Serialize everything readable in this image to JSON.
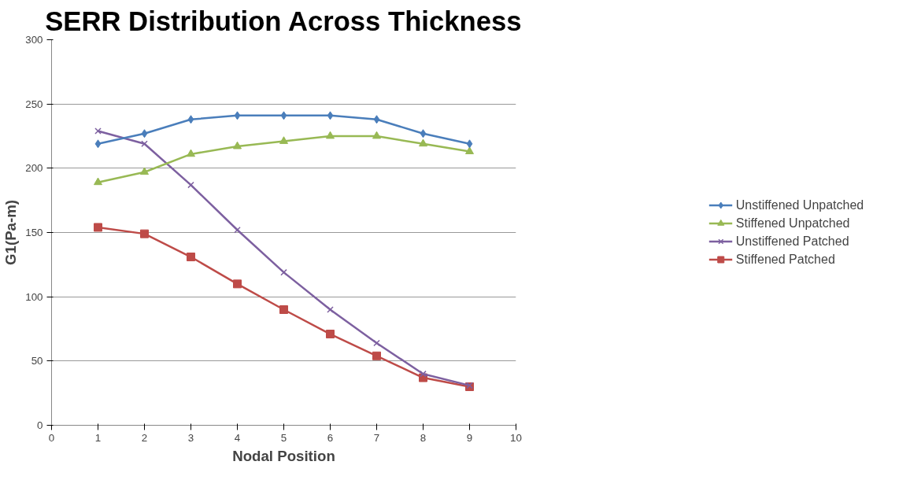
{
  "chart_data": {
    "type": "line",
    "title": "SERR Distribution Across Thickness",
    "xlabel": "Nodal Position",
    "ylabel": "G1(Pa-m)",
    "x": [
      1,
      2,
      3,
      4,
      5,
      6,
      7,
      8,
      9
    ],
    "series": [
      {
        "name": "Unstiffened Unpatched",
        "color": "#4a7ebb",
        "marker": "diamond",
        "values": [
          219,
          227,
          238,
          241,
          241,
          241,
          238,
          227,
          219
        ]
      },
      {
        "name": "Stiffened Unpatched",
        "color": "#98b954",
        "marker": "triangle",
        "values": [
          189,
          197,
          211,
          217,
          221,
          225,
          225,
          219,
          213
        ]
      },
      {
        "name": "Unstiffened Patched",
        "color": "#7d60a0",
        "marker": "cross",
        "values": [
          229,
          219,
          187,
          152,
          119,
          90,
          64,
          40,
          31
        ]
      },
      {
        "name": "Stiffened Patched",
        "color": "#be4b48",
        "marker": "square",
        "values": [
          154,
          149,
          131,
          110,
          90,
          71,
          54,
          37,
          30
        ]
      }
    ],
    "xlim": [
      0,
      10
    ],
    "xticks": [
      0,
      1,
      2,
      3,
      4,
      5,
      6,
      7,
      8,
      9,
      10
    ],
    "ylim": [
      0,
      300
    ],
    "yticks": [
      0,
      50,
      100,
      150,
      200,
      250,
      300
    ],
    "grid": "y",
    "legend": "right",
    "line_style": "solid"
  }
}
